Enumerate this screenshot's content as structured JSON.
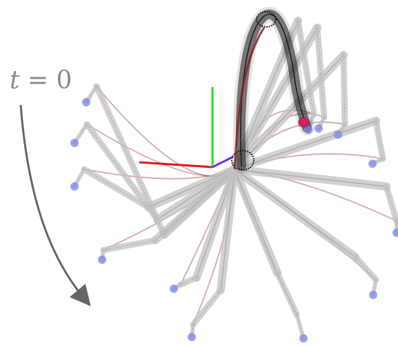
{
  "annotation": {
    "time_var": "t",
    "equals": "=",
    "time_value": "0"
  },
  "colors": {
    "background": "#ffffff",
    "ghost_limb": "#c2c2c2",
    "ghost_limb_stroke": "#a8a8a8",
    "active_limb": "#1a1a1a",
    "trajectory": "#8b1a1a",
    "foot_marker": "#7b86e8",
    "target_marker": "#d6206a",
    "axis_x": "#e01515",
    "axis_y": "#22dd22",
    "axis_z": "#6a2fd6",
    "arrow": "#666666",
    "text": "#8a8a8a"
  },
  "icons": {
    "arrow": "curved-time-arrow",
    "origin": "coordinate-frame"
  }
}
